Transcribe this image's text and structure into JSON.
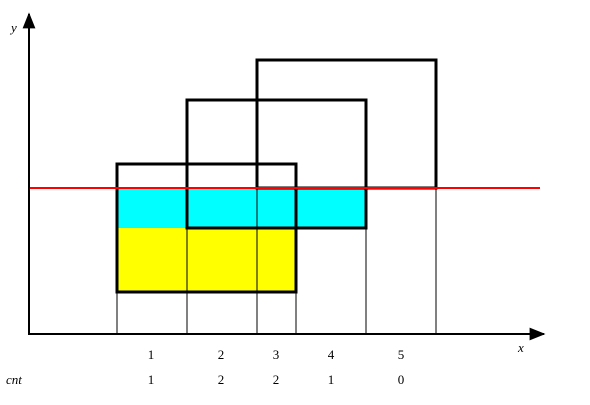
{
  "axes": {
    "x_label": "x",
    "y_label": "y"
  },
  "colors": {
    "background": "#ffffff",
    "outline": "#000000",
    "sweep_line": "#ff0000",
    "fill_upper": "#00ffff",
    "fill_lower": "#ffff00"
  },
  "segments": {
    "numbers": [
      "1",
      "2",
      "3",
      "4",
      "5"
    ]
  },
  "cnt": {
    "label": "cnt",
    "values": [
      "1",
      "2",
      "2",
      "1",
      "0"
    ]
  }
}
